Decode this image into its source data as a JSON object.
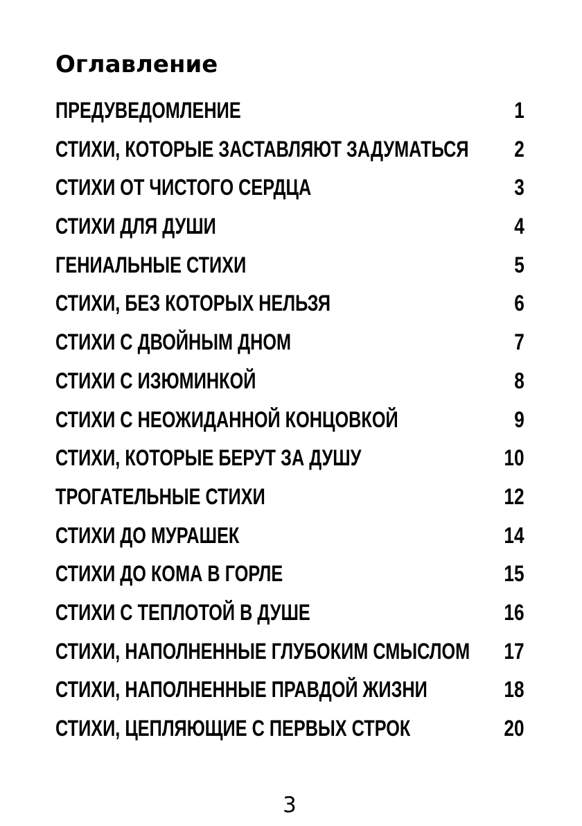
{
  "page": {
    "title": "Оглавление",
    "footer_page_number": "3"
  },
  "toc": {
    "entries": [
      {
        "label": "ПРЕДУВЕДОМЛЕНИЕ",
        "page": "1"
      },
      {
        "label": "СТИХИ, КОТОРЫЕ ЗАСТАВЛЯЮТ ЗАДУМАТЬСЯ",
        "page": "2"
      },
      {
        "label": "СТИХИ ОТ ЧИСТОГО СЕРДЦА",
        "page": "3"
      },
      {
        "label": "СТИХИ ДЛЯ ДУШИ",
        "page": "4"
      },
      {
        "label": "ГЕНИАЛЬНЫЕ СТИХИ",
        "page": "5"
      },
      {
        "label": "СТИХИ, БЕЗ КОТОРЫХ НЕЛЬЗЯ",
        "page": "6"
      },
      {
        "label": "СТИХИ С ДВОЙНЫМ ДНОМ",
        "page": "7"
      },
      {
        "label": "СТИХИ С ИЗЮМИНКОЙ",
        "page": "8"
      },
      {
        "label": "СТИХИ С НЕОЖИДАННОЙ КОНЦОВКОЙ",
        "page": "9"
      },
      {
        "label": "СТИХИ, КОТОРЫЕ БЕРУТ ЗА ДУШУ",
        "page": "10"
      },
      {
        "label": "ТРОГАТЕЛЬНЫЕ СТИХИ",
        "page": "12"
      },
      {
        "label": "СТИХИ ДО МУРАШЕК",
        "page": "14"
      },
      {
        "label": "СТИХИ ДО КОМА В ГОРЛЕ",
        "page": "15"
      },
      {
        "label": "СТИХИ С ТЕПЛОТОЙ В ДУШЕ",
        "page": "16"
      },
      {
        "label": "СТИХИ, НАПОЛНЕННЫЕ ГЛУБОКИМ СМЫСЛОМ",
        "page": "17"
      },
      {
        "label": "СТИХИ, НАПОЛНЕННЫЕ ПРАВДОЙ ЖИЗНИ",
        "page": "18"
      },
      {
        "label": "СТИХИ, ЦЕПЛЯЮЩИЕ С ПЕРВЫХ СТРОК",
        "page": "20"
      }
    ]
  },
  "colors": {
    "text": "#000000",
    "background": "#ffffff"
  }
}
